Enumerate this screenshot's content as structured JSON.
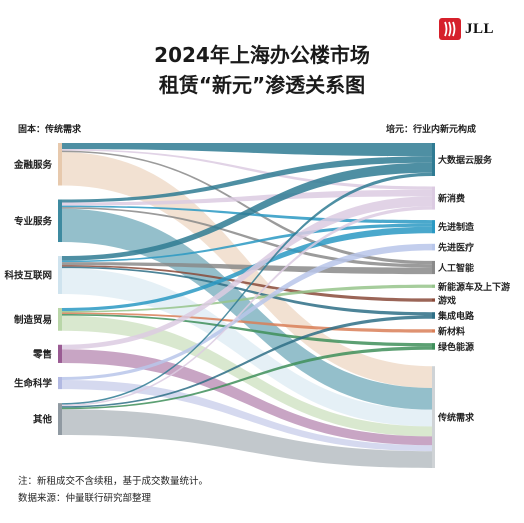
{
  "logo": {
    "text": "JLL",
    "color": "#d6202b"
  },
  "title": {
    "line1": "2024年上海办公楼市场",
    "line2": "租赁“新元”渗透关系图"
  },
  "left_header": "固本：传统需求",
  "right_header": "培元：行业内新元构成",
  "chart_data": {
    "type": "sankey",
    "sources": [
      {
        "name": "金融服务",
        "color": "#e7c9ad"
      },
      {
        "name": "专业服务",
        "color": "#3d8aa0"
      },
      {
        "name": "科技互联网",
        "color": "#cfe3ee"
      },
      {
        "name": "制造贸易",
        "color": "#b9d6a8"
      },
      {
        "name": "零售",
        "color": "#9a5b93"
      },
      {
        "name": "生命科学",
        "color": "#b2b9e2"
      },
      {
        "name": "其他",
        "color": "#909aa2"
      }
    ],
    "targets": [
      {
        "name": "大数据云服务",
        "color": "#2f7b93"
      },
      {
        "name": "新消费",
        "color": "#dccbe2"
      },
      {
        "name": "先进制造",
        "color": "#2a99c3"
      },
      {
        "name": "先进医疗",
        "color": "#b8c6ea"
      },
      {
        "name": "人工智能",
        "color": "#8a8a8a"
      },
      {
        "name": "新能源车及上下游",
        "color": "#96c48b"
      },
      {
        "name": "游戏",
        "color": "#8a4a3a"
      },
      {
        "name": "集成电路",
        "color": "#2e6f86"
      },
      {
        "name": "新材料",
        "color": "#d97f58"
      },
      {
        "name": "绿色能源",
        "color": "#3f8f5b"
      },
      {
        "name": "传统需求",
        "color": "#cfd3d6"
      }
    ],
    "flows": [
      {
        "source": "金融服务",
        "target": "大数据云服务",
        "value": 4
      },
      {
        "source": "金融服务",
        "target": "新消费",
        "value": 1
      },
      {
        "source": "金融服务",
        "target": "人工智能",
        "value": 1
      },
      {
        "source": "金融服务",
        "target": "传统需求",
        "value": 22
      },
      {
        "source": "专业服务",
        "target": "大数据云服务",
        "value": 2
      },
      {
        "source": "专业服务",
        "target": "新消费",
        "value": 2
      },
      {
        "source": "专业服务",
        "target": "先进制造",
        "value": 1
      },
      {
        "source": "专业服务",
        "target": "人工智能",
        "value": 1
      },
      {
        "source": "专业服务",
        "target": "传统需求",
        "value": 22
      },
      {
        "source": "科技互联网",
        "target": "大数据云服务",
        "value": 3
      },
      {
        "source": "科技互联网",
        "target": "先进制造",
        "value": 1
      },
      {
        "source": "科技互联网",
        "target": "人工智能",
        "value": 2
      },
      {
        "source": "科技互联网",
        "target": "游戏",
        "value": 1
      },
      {
        "source": "科技互联网",
        "target": "集成电路",
        "value": 1
      },
      {
        "source": "科技互联网",
        "target": "传统需求",
        "value": 17
      },
      {
        "source": "制造贸易",
        "target": "先进制造",
        "value": 2
      },
      {
        "source": "制造贸易",
        "target": "新能源车及上下游",
        "value": 1
      },
      {
        "source": "制造贸易",
        "target": "新材料",
        "value": 1
      },
      {
        "source": "制造贸易",
        "target": "绿色能源",
        "value": 1
      },
      {
        "source": "制造贸易",
        "target": "传统需求",
        "value": 10
      },
      {
        "source": "零售",
        "target": "新消费",
        "value": 3
      },
      {
        "source": "零售",
        "target": "传统需求",
        "value": 9
      },
      {
        "source": "生命科学",
        "target": "先进医疗",
        "value": 2
      },
      {
        "source": "生命科学",
        "target": "传统需求",
        "value": 6
      },
      {
        "source": "其他",
        "target": "大数据云服务",
        "value": 1
      },
      {
        "source": "其他",
        "target": "新消费",
        "value": 1
      },
      {
        "source": "其他",
        "target": "集成电路",
        "value": 1
      },
      {
        "source": "其他",
        "target": "绿色能源",
        "value": 1
      },
      {
        "source": "其他",
        "target": "传统需求",
        "value": 17
      }
    ]
  },
  "notes": {
    "line1": "注：新租成交不含续租，基于成交数量统计。",
    "line2": "数据来源：仲量联行研究部整理"
  }
}
